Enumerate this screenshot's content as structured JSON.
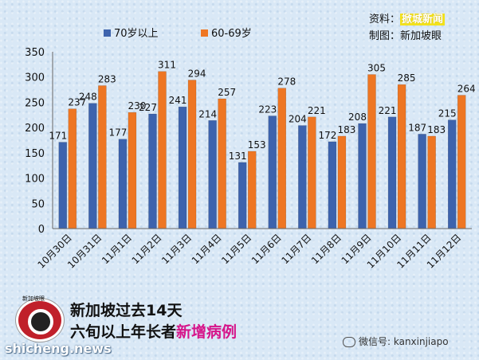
{
  "source": {
    "line1_label": "资料：",
    "line1_value": "掀城新闻",
    "line2_label": "制图：",
    "line2_value": "新加坡眼"
  },
  "caption": {
    "line1": "新加坡过去14天",
    "line2_prefix": "六旬以上年长者",
    "line2_highlight": "新增病例"
  },
  "logo_text": "新加坡眼",
  "watermark": "shicheng.news",
  "wechat": "微信号: kanxinjiapo",
  "colors": {
    "series1": "#3d63ad",
    "series2": "#ee7623",
    "pink": "#d6158a"
  },
  "chart_data": {
    "type": "bar",
    "categories": [
      "10月30日",
      "10月31日",
      "11月1日",
      "11月2日",
      "11月3日",
      "11月4日",
      "11月5日",
      "11月6日",
      "11月7日",
      "11月8日",
      "11月9日",
      "11月10日",
      "11月11日",
      "11月12日"
    ],
    "series": [
      {
        "name": "70岁以上",
        "values": [
          171,
          248,
          177,
          227,
          241,
          214,
          131,
          223,
          204,
          172,
          208,
          221,
          187,
          215
        ]
      },
      {
        "name": "60-69岁",
        "values": [
          237,
          283,
          230,
          311,
          294,
          257,
          153,
          278,
          221,
          183,
          305,
          285,
          183,
          264
        ]
      }
    ],
    "ylim": [
      0,
      350
    ],
    "yticks": [
      0,
      50,
      100,
      150,
      200,
      250,
      300,
      350
    ],
    "grid": false,
    "legend": "top-left",
    "data_labels": true
  }
}
